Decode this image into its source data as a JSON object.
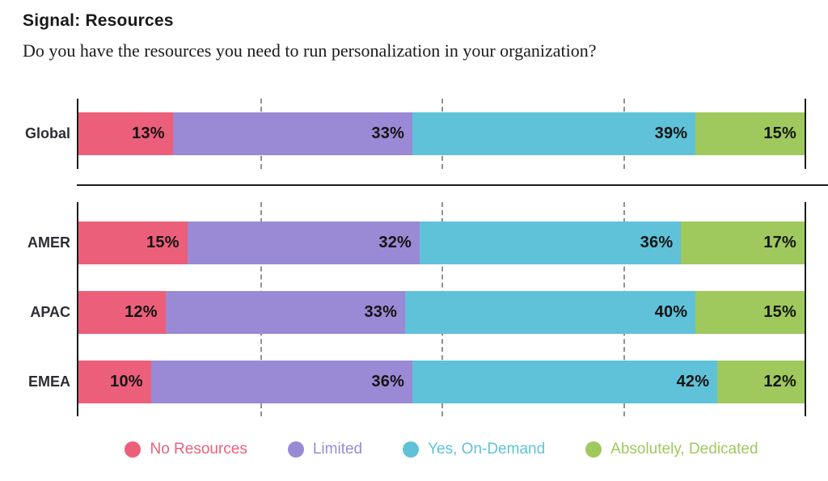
{
  "header": {
    "title": "Signal: Resources",
    "subtitle": "Do you have the resources you need to run personalization in your organization?"
  },
  "chart_data": {
    "type": "bar",
    "orientation": "horizontal-stacked",
    "title": "Signal: Resources",
    "question": "Do you have the resources you need to run personalization in your organization?",
    "value_unit": "%",
    "xlim": [
      0,
      100
    ],
    "gridlines_pct": [
      25,
      50,
      75
    ],
    "grid_style": "dashed-vertical",
    "legend_position": "bottom",
    "legend": [
      {
        "label": "No Resources",
        "color": "#EC5F7B"
      },
      {
        "label": "Limited",
        "color": "#9A89D5"
      },
      {
        "label": "Yes, On-Demand",
        "color": "#5FC2D8"
      },
      {
        "label": "Absolutely, Dedicated",
        "color": "#9FC95C"
      }
    ],
    "groups": [
      {
        "name": "global",
        "rows": [
          {
            "label": "Global",
            "values": [
              13,
              33,
              39,
              15
            ]
          }
        ]
      },
      {
        "name": "regions",
        "rows": [
          {
            "label": "AMER",
            "values": [
              15,
              32,
              36,
              17
            ]
          },
          {
            "label": "APAC",
            "values": [
              12,
              33,
              40,
              15
            ]
          },
          {
            "label": "EMEA",
            "values": [
              10,
              36,
              42,
              12
            ]
          }
        ]
      }
    ]
  },
  "colors": {
    "axis": "#1c1c1c",
    "gridline": "#909090",
    "divider": "#1c1c1c",
    "row_label_text": "#2d2d35",
    "value_text": "#141414",
    "background": "#ffffff"
  }
}
